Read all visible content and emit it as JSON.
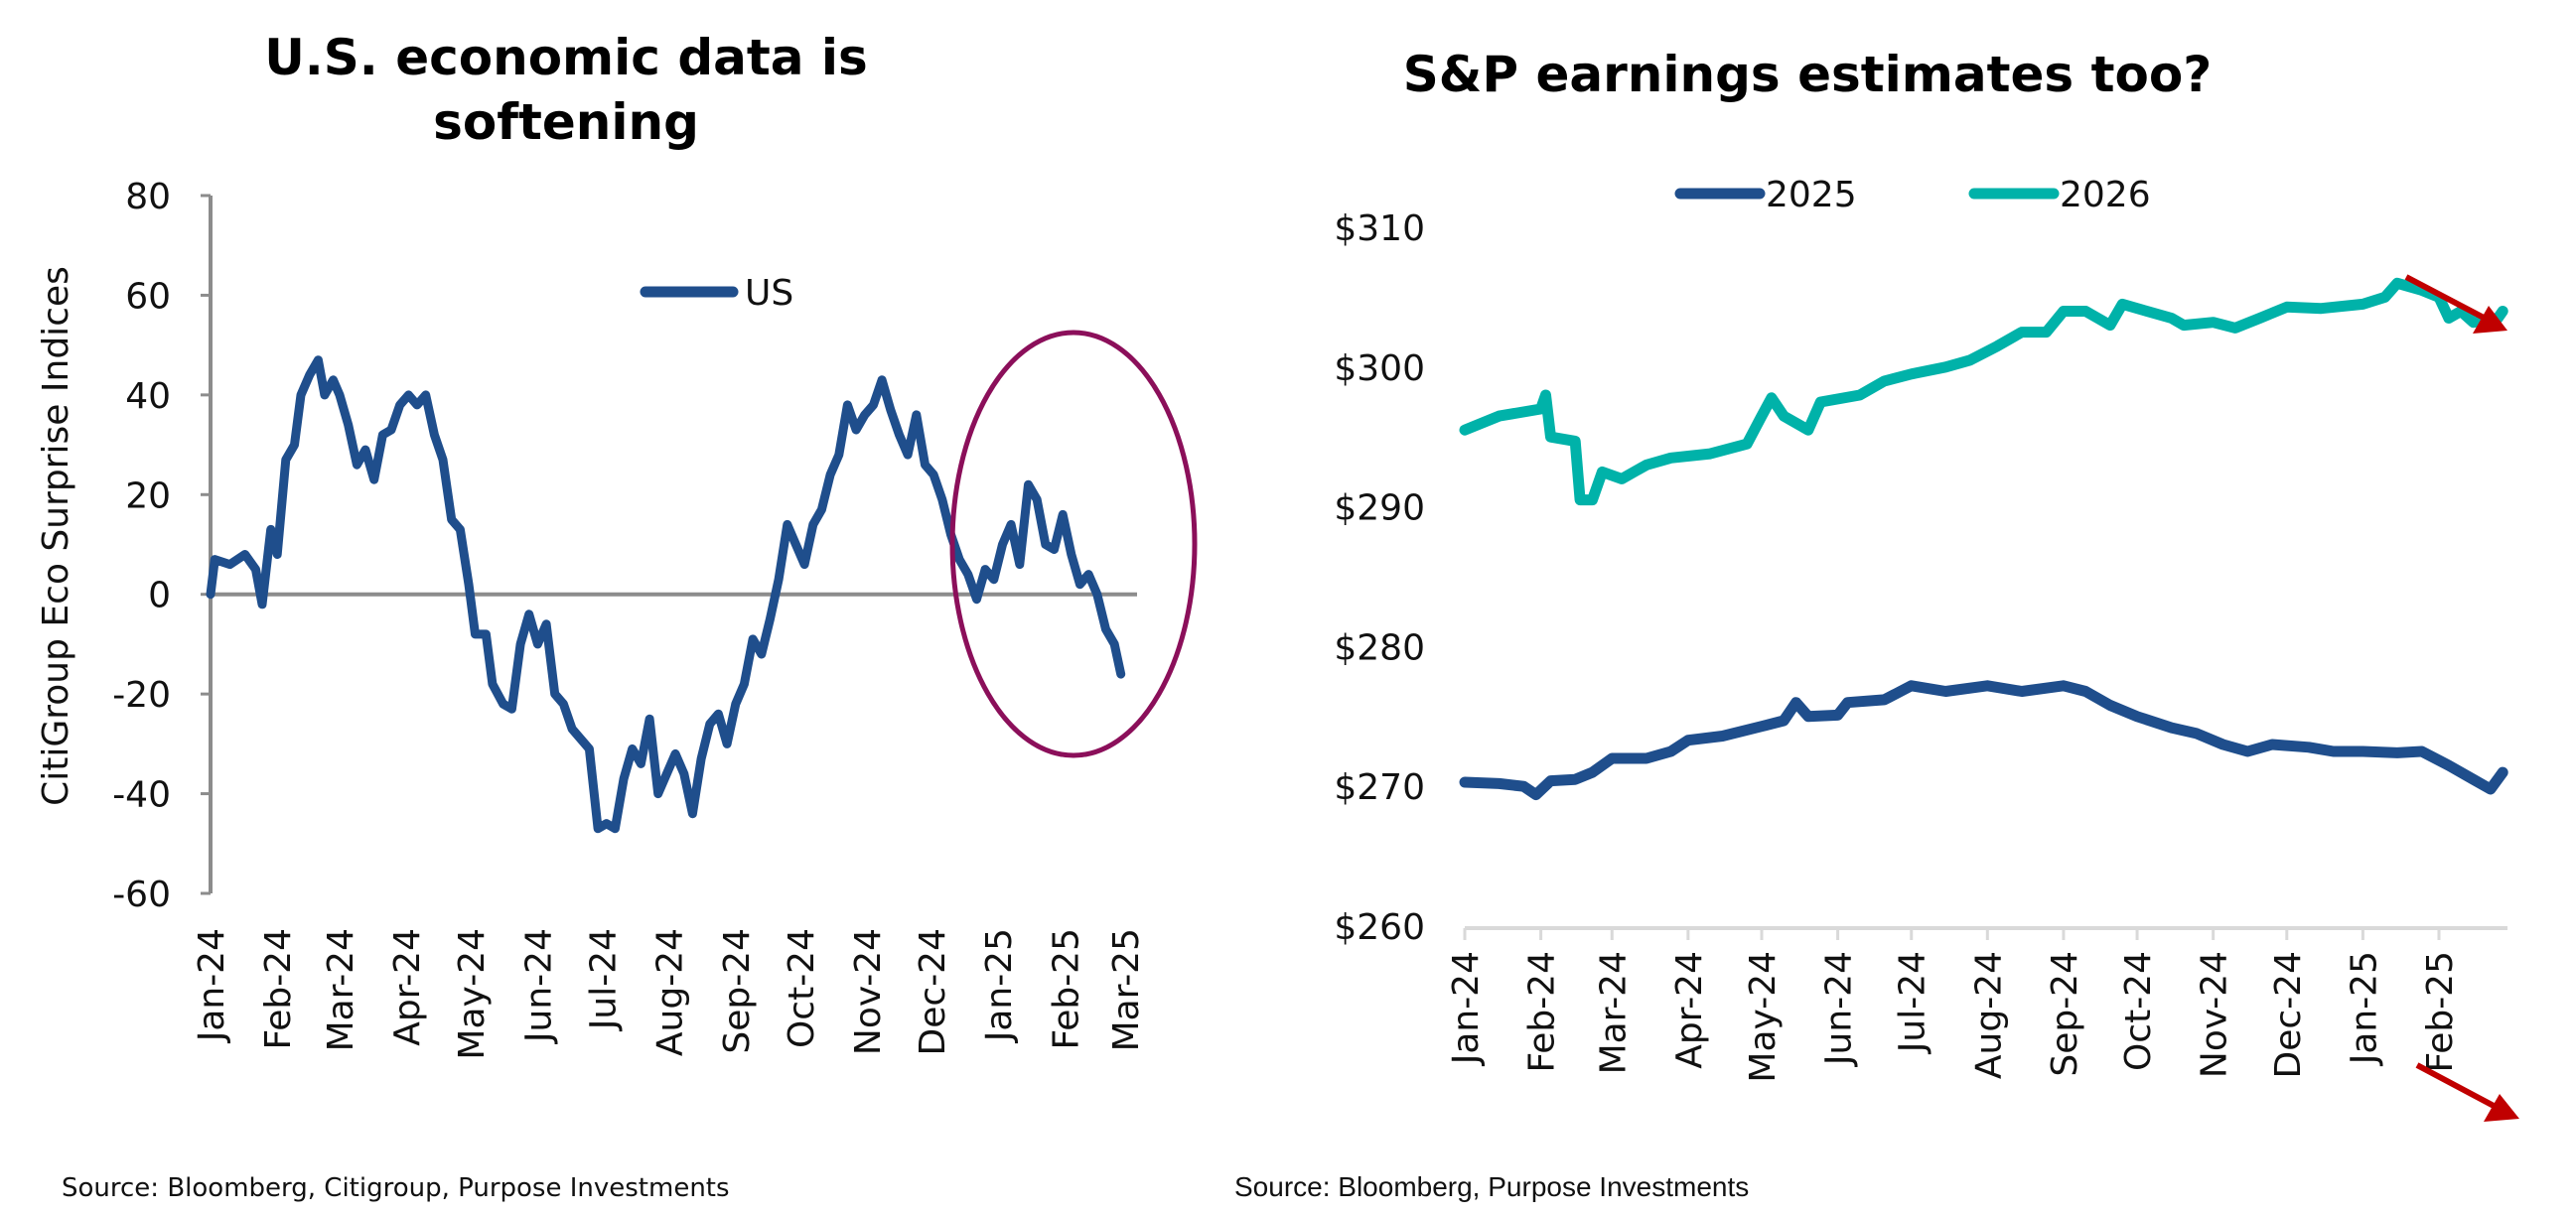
{
  "chart_data": [
    {
      "type": "line",
      "title": "U.S. economic data is softening",
      "title_lines": [
        "U.S. economic data is",
        "softening"
      ],
      "ylabel": "CitiGroup Eco Surprise Indices",
      "xlabel": "",
      "ylim": [
        -60,
        80
      ],
      "yticks": [
        "80",
        "60",
        "40",
        "20",
        "0",
        "-20",
        "-40",
        "-60"
      ],
      "ytick_values": [
        80,
        60,
        40,
        20,
        0,
        -20,
        -40,
        -60
      ],
      "xticks": [
        "Jan-24",
        "Feb-24",
        "Mar-24",
        "Apr-24",
        "May-24",
        "Jun-24",
        "Jul-24",
        "Aug-24",
        "Sep-24",
        "Oct-24",
        "Nov-24",
        "Dec-24",
        "Jan-25",
        "Feb-25",
        "Mar-25"
      ],
      "xtick_dates": [
        "2024-01-01",
        "2024-02-01",
        "2024-03-01",
        "2024-04-01",
        "2024-05-01",
        "2024-06-01",
        "2024-07-01",
        "2024-08-01",
        "2024-09-01",
        "2024-10-01",
        "2024-11-01",
        "2024-12-01",
        "2025-01-01",
        "2025-02-01",
        "2025-03-01"
      ],
      "xlim": [
        "2024-01-01",
        "2025-03-01"
      ],
      "grid": false,
      "zero_line": true,
      "legend_position": "top-center",
      "annotation": "ellipse highlighting Dec-24 to Feb-25",
      "series": [
        {
          "name": "US",
          "color": "#1f4e8c",
          "x": [
            "2024-01-01",
            "2024-01-03",
            "2024-01-10",
            "2024-01-17",
            "2024-01-22",
            "2024-01-25",
            "2024-01-29",
            "2024-02-01",
            "2024-02-05",
            "2024-02-09",
            "2024-02-12",
            "2024-02-16",
            "2024-02-20",
            "2024-02-23",
            "2024-02-27",
            "2024-03-01",
            "2024-03-05",
            "2024-03-09",
            "2024-03-13",
            "2024-03-17",
            "2024-03-21",
            "2024-03-25",
            "2024-03-29",
            "2024-04-02",
            "2024-04-06",
            "2024-04-10",
            "2024-04-14",
            "2024-04-18",
            "2024-04-22",
            "2024-04-26",
            "2024-04-30",
            "2024-05-03",
            "2024-05-08",
            "2024-05-11",
            "2024-05-16",
            "2024-05-20",
            "2024-05-24",
            "2024-05-28",
            "2024-06-01",
            "2024-06-05",
            "2024-06-09",
            "2024-06-13",
            "2024-06-17",
            "2024-06-21",
            "2024-06-25",
            "2024-06-29",
            "2024-07-03",
            "2024-07-07",
            "2024-07-11",
            "2024-07-15",
            "2024-07-19",
            "2024-07-23",
            "2024-07-27",
            "2024-07-31",
            "2024-08-04",
            "2024-08-08",
            "2024-08-12",
            "2024-08-16",
            "2024-08-20",
            "2024-08-24",
            "2024-08-28",
            "2024-09-01",
            "2024-09-05",
            "2024-09-09",
            "2024-09-13",
            "2024-09-17",
            "2024-09-21",
            "2024-09-25",
            "2024-09-29",
            "2024-10-03",
            "2024-10-07",
            "2024-10-11",
            "2024-10-15",
            "2024-10-19",
            "2024-10-23",
            "2024-10-27",
            "2024-10-31",
            "2024-11-04",
            "2024-11-08",
            "2024-11-12",
            "2024-11-16",
            "2024-11-20",
            "2024-11-24",
            "2024-11-28",
            "2024-12-02",
            "2024-12-06",
            "2024-12-10",
            "2024-12-14",
            "2024-12-18",
            "2024-12-22",
            "2024-12-26",
            "2024-12-30",
            "2025-01-03",
            "2025-01-07",
            "2025-01-11",
            "2025-01-15",
            "2025-01-19",
            "2025-01-23",
            "2025-01-27",
            "2025-01-31",
            "2025-02-04",
            "2025-02-08",
            "2025-02-12",
            "2025-02-16",
            "2025-02-20",
            "2025-02-24",
            "2025-02-27"
          ],
          "y": [
            0,
            7,
            6,
            8,
            5,
            -2,
            13,
            8,
            27,
            30,
            40,
            44,
            47,
            40,
            43,
            40,
            34,
            26,
            29,
            23,
            32,
            33,
            38,
            40,
            38,
            40,
            32,
            27,
            15,
            13,
            2,
            -8,
            -8,
            -18,
            -22,
            -23,
            -10,
            -4,
            -10,
            -6,
            -20,
            -22,
            -27,
            -29,
            -31,
            -47,
            -46,
            -47,
            -37,
            -31,
            -34,
            -25,
            -40,
            -36,
            -32,
            -36,
            -44,
            -33,
            -26,
            -24,
            -30,
            -22,
            -18,
            -9,
            -12,
            -5,
            3,
            14,
            10,
            6,
            14,
            17,
            24,
            28,
            38,
            33,
            36,
            38,
            43,
            37,
            32,
            28,
            36,
            26,
            24,
            19,
            12,
            7,
            4,
            -1,
            5,
            3,
            10,
            14,
            6,
            22,
            19,
            10,
            9,
            16,
            8,
            2,
            4,
            0,
            -7,
            -10,
            -16
          ]
        }
      ],
      "source": "Source: Bloomberg, Citigroup, Purpose Investments"
    },
    {
      "type": "line",
      "title": "S&P earnings estimates too?",
      "xlabel": "",
      "ylabel": "",
      "ylim": [
        260,
        310
      ],
      "yticks": [
        "$310",
        "$300",
        "$290",
        "$280",
        "$270",
        "$260"
      ],
      "ytick_values": [
        310,
        300,
        290,
        280,
        270,
        260
      ],
      "xticks": [
        "Jan-24",
        "Feb-24",
        "Mar-24",
        "Apr-24",
        "May-24",
        "Jun-24",
        "Jul-24",
        "Aug-24",
        "Sep-24",
        "Oct-24",
        "Nov-24",
        "Dec-24",
        "Jan-25",
        "Feb-25"
      ],
      "xtick_dates": [
        "2024-01-01",
        "2024-02-01",
        "2024-03-01",
        "2024-04-01",
        "2024-05-01",
        "2024-06-01",
        "2024-07-01",
        "2024-08-01",
        "2024-09-01",
        "2024-10-01",
        "2024-11-01",
        "2024-12-01",
        "2025-01-01",
        "2025-02-01"
      ],
      "grid": false,
      "legend_position": "top-center",
      "annotation": "red down-trend arrows at end of both series",
      "arrow_color": "#c00000",
      "series": [
        {
          "name": "2025",
          "color": "#1f4e8c",
          "x": [
            "2024-01-01",
            "2024-01-15",
            "2024-01-25",
            "2024-01-30",
            "2024-02-05",
            "2024-02-15",
            "2024-02-22",
            "2024-03-01",
            "2024-03-15",
            "2024-03-25",
            "2024-04-01",
            "2024-04-15",
            "2024-05-01",
            "2024-05-10",
            "2024-05-15",
            "2024-05-20",
            "2024-06-01",
            "2024-06-05",
            "2024-06-20",
            "2024-07-01",
            "2024-07-15",
            "2024-08-01",
            "2024-08-15",
            "2024-09-01",
            "2024-09-10",
            "2024-09-20",
            "2024-10-01",
            "2024-10-15",
            "2024-10-25",
            "2024-11-05",
            "2024-11-15",
            "2024-11-25",
            "2024-12-10",
            "2024-12-20",
            "2025-01-01",
            "2025-01-15",
            "2025-01-25",
            "2025-02-05",
            "2025-02-15",
            "2025-02-22",
            "2025-02-27"
          ],
          "y": [
            270.3,
            270.2,
            270,
            269.4,
            270.4,
            270.5,
            271,
            272,
            272,
            272.5,
            273.3,
            273.6,
            274.3,
            274.7,
            276,
            275,
            275.1,
            276,
            276.2,
            277.2,
            276.8,
            277.2,
            276.8,
            277.2,
            276.8,
            275.8,
            275,
            274.2,
            273.8,
            273,
            272.5,
            273,
            272.8,
            272.5,
            272.5,
            272.4,
            272.5,
            271.5,
            270.5,
            269.8,
            271
          ]
        },
        {
          "name": "2026",
          "color": "#00b2a9",
          "x": [
            "2024-01-01",
            "2024-01-15",
            "2024-02-01",
            "2024-02-03",
            "2024-02-05",
            "2024-02-15",
            "2024-02-17",
            "2024-02-22",
            "2024-02-26",
            "2024-03-05",
            "2024-03-15",
            "2024-03-25",
            "2024-04-10",
            "2024-04-25",
            "2024-05-01",
            "2024-05-05",
            "2024-05-10",
            "2024-05-20",
            "2024-05-25",
            "2024-06-10",
            "2024-06-20",
            "2024-07-01",
            "2024-07-15",
            "2024-07-25",
            "2024-08-05",
            "2024-08-15",
            "2024-08-25",
            "2024-09-01",
            "2024-09-10",
            "2024-09-20",
            "2024-09-25",
            "2024-10-05",
            "2024-10-15",
            "2024-10-20",
            "2024-11-01",
            "2024-11-10",
            "2024-11-20",
            "2024-12-01",
            "2024-12-15",
            "2025-01-01",
            "2025-01-10",
            "2025-01-15",
            "2025-01-25",
            "2025-02-01",
            "2025-02-05",
            "2025-02-10",
            "2025-02-15",
            "2025-02-25",
            "2025-02-27"
          ],
          "y": [
            295.5,
            296.5,
            297,
            298,
            295,
            294.7,
            290.5,
            290.5,
            292.5,
            292,
            293,
            293.5,
            293.8,
            294.5,
            296.5,
            297.8,
            296.5,
            295.5,
            297.5,
            298,
            299,
            299.5,
            300,
            300.5,
            301.5,
            302.5,
            302.5,
            304,
            304,
            303,
            304.5,
            304,
            303.5,
            303,
            303.2,
            302.8,
            303.5,
            304.3,
            304.2,
            304.5,
            305,
            306,
            305.5,
            305,
            303.5,
            304,
            303.2,
            303.5,
            304
          ]
        }
      ],
      "source": "Source: Bloomberg, Purpose Investments"
    }
  ]
}
